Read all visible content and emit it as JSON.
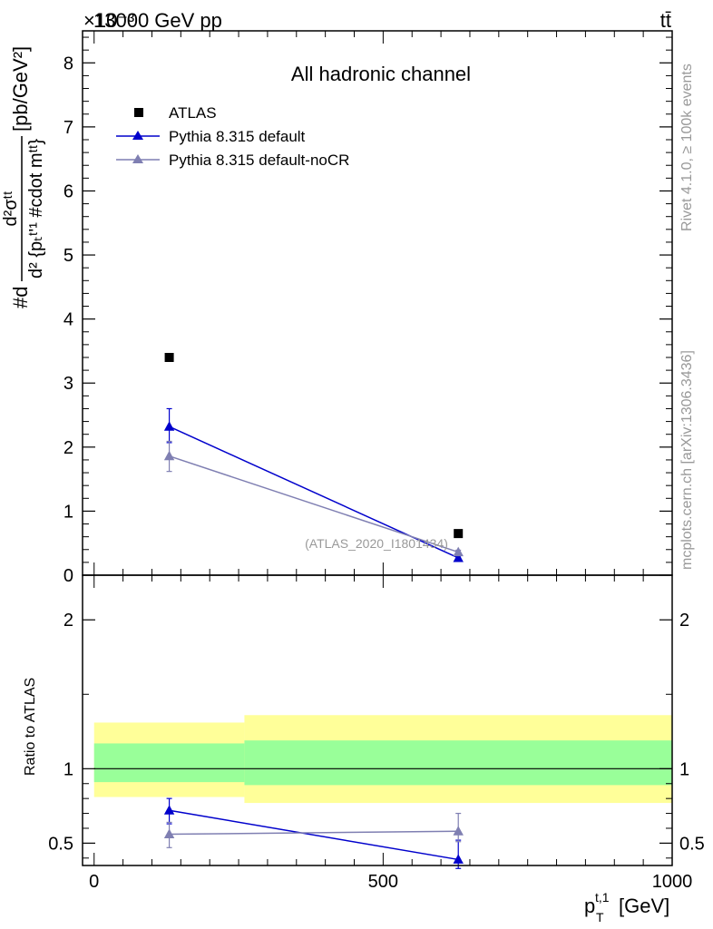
{
  "header": {
    "left_title": "13000 GeV pp",
    "right_title": "tt̄",
    "exponent": "×10⁻³"
  },
  "side_labels": {
    "rivet": "Rivet 4.1.0, ≥ 100k events",
    "mcplots": "mcplots.cern.ch [arXiv:1306.3436]"
  },
  "top_panel": {
    "ylabel": "#d d²σᵗᵗ / d²{pₜ^{t,1} #cdot mₜₜ} [pb/GeV²]",
    "ylabel_parts": {
      "prefix": "#d",
      "numerator": "d²σᵗᵗ",
      "denominator": "d² {pₜᵗ'¹ #cdot mᵗᵗ}",
      "units": "[pb/GeV²]"
    },
    "annotation": "All hadronic channel",
    "watermark": "(ATLAS_2020_I1801434)"
  },
  "legend": {
    "atlas": "ATLAS",
    "pythia": "Pythia 8.315 default",
    "pythia_nocr": "Pythia 8.315 default-noCR"
  },
  "ratio_panel": {
    "ylabel": "Ratio to ATLAS"
  },
  "x_axis": {
    "label": "pₜᵗ'¹ [GeV]",
    "label_main": "p",
    "label_sub": "T",
    "label_sup": "t,1",
    "label_unit": "[GeV]"
  },
  "colors": {
    "atlas": "#000000",
    "pythia": "#0000cc",
    "pythia_nocr": "#7f7fb2",
    "band_inner": "#99ff99",
    "band_outer": "#ffff99"
  },
  "chart_data": [
    {
      "type": "scatter",
      "panel": "main",
      "x_range": [
        -20,
        1000
      ],
      "ylim": [
        0,
        8.5
      ],
      "y_scale_factor": 0.001,
      "y_ticks": [
        0,
        1,
        2,
        3,
        4,
        5,
        6,
        7,
        8
      ],
      "x_ticks": [
        0,
        500,
        1000
      ],
      "series": [
        {
          "name": "ATLAS",
          "x": [
            130,
            630
          ],
          "values": [
            3.4,
            0.65
          ],
          "bins": [
            [
              0,
              260
            ],
            [
              260,
              1000
            ]
          ],
          "errors": [
            [
              0,
              0
            ],
            [
              0,
              0
            ]
          ],
          "marker": "square"
        },
        {
          "name": "Pythia 8.315 default",
          "x": [
            130,
            630
          ],
          "values": [
            2.32,
            0.27
          ],
          "errors": [
            [
              0.25,
              0.28
            ],
            [
              0.03,
              0.03
            ]
          ],
          "marker": "triangle"
        },
        {
          "name": "Pythia 8.315 default-noCR",
          "x": [
            130,
            630
          ],
          "values": [
            1.86,
            0.36
          ],
          "errors": [
            [
              0.24,
              0.23
            ],
            [
              0.03,
              0.03
            ]
          ],
          "marker": "triangle"
        }
      ]
    },
    {
      "type": "scatter",
      "panel": "ratio",
      "x_range": [
        -20,
        1000
      ],
      "ylim": [
        0.35,
        2.3
      ],
      "y_ticks": [
        0.5,
        1,
        2
      ],
      "y_tick_labels": [
        "0.5",
        "1",
        "2"
      ],
      "bands": [
        {
          "x": [
            0,
            260
          ],
          "inner": [
            0.91,
            1.17
          ],
          "outer": [
            0.81,
            1.31
          ]
        },
        {
          "x": [
            260,
            1000
          ],
          "inner": [
            0.89,
            1.19
          ],
          "outer": [
            0.77,
            1.36
          ]
        }
      ],
      "series": [
        {
          "name": "Pythia 8.315 default",
          "x": [
            130,
            630
          ],
          "values": [
            0.72,
            0.39
          ],
          "errors": [
            [
              0.09,
              0.08
            ],
            [
              0.06,
              0.13
            ]
          ]
        },
        {
          "name": "Pythia 8.315 default-noCR",
          "x": [
            130,
            630
          ],
          "values": [
            0.56,
            0.58
          ],
          "errors": [
            [
              0.09,
              0.08
            ],
            [
              0.07,
              0.12
            ]
          ]
        }
      ]
    }
  ]
}
